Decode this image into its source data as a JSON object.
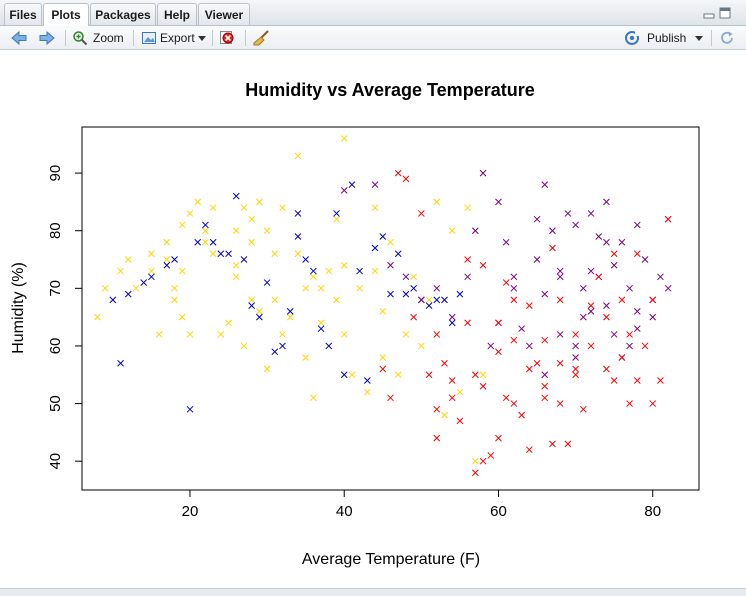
{
  "tabs": [
    {
      "label": "Files",
      "active": false
    },
    {
      "label": "Plots",
      "active": true
    },
    {
      "label": "Packages",
      "active": false
    },
    {
      "label": "Help",
      "active": false
    },
    {
      "label": "Viewer",
      "active": false
    }
  ],
  "toolbar": {
    "back_icon": "arrow-left-icon",
    "forward_icon": "arrow-right-icon",
    "zoom_label": "Zoom",
    "export_label": "Export",
    "remove_icon": "remove-plot-icon",
    "clear_icon": "broom-icon",
    "publish_label": "Publish",
    "refresh_icon": "refresh-icon"
  },
  "colors": {
    "accent_blue": "#3a78c3",
    "cold": "#ffd700",
    "cool": "#0000cd",
    "warm": "#800080",
    "hot": "#ff0000"
  },
  "chart_data": {
    "type": "scatter",
    "title": "Humidity vs Average Temperature",
    "xlabel": "Average Temperature (F)",
    "ylabel": "Humidity (%)",
    "xlim": [
      6,
      86
    ],
    "ylim": [
      35,
      98
    ],
    "xticks": [
      20,
      40,
      60,
      80
    ],
    "yticks": [
      40,
      50,
      60,
      70,
      80,
      90
    ],
    "marker": "x",
    "grid": false,
    "legend": "none",
    "series": [
      {
        "color": "#ffd700",
        "x": [
          8,
          9,
          11,
          12,
          13,
          14,
          15,
          15,
          16,
          17,
          17,
          18,
          18,
          19,
          19,
          19,
          20,
          20,
          21,
          22,
          22,
          23,
          23,
          24,
          25,
          26,
          26,
          26,
          27,
          27,
          28,
          28,
          28,
          29,
          29,
          30,
          30,
          31,
          31,
          32,
          32,
          33,
          34,
          34,
          34,
          35,
          35,
          36,
          36,
          37,
          37,
          38,
          38,
          39,
          39,
          40,
          40,
          40,
          41,
          42,
          43,
          44,
          44,
          45,
          45,
          46,
          47,
          48,
          49,
          50,
          51,
          52,
          53,
          54,
          55,
          56,
          57,
          58
        ],
        "y": [
          65,
          70,
          73,
          75,
          70,
          71,
          73,
          76,
          62,
          78,
          75,
          70,
          68,
          73,
          81,
          65,
          83,
          62,
          85,
          80,
          78,
          84,
          76,
          62,
          64,
          80,
          74,
          72,
          84,
          60,
          82,
          78,
          68,
          85,
          66,
          80,
          56,
          76,
          68,
          84,
          62,
          65,
          83,
          76,
          93,
          70,
          58,
          72,
          51,
          70,
          64,
          73,
          60,
          82,
          68,
          96,
          74,
          62,
          55,
          70,
          52,
          73,
          84,
          66,
          58,
          78,
          55,
          62,
          72,
          60,
          68,
          85,
          48,
          80,
          52,
          84,
          40,
          55
        ]
      },
      {
        "color": "#0000cd",
        "x": [
          10,
          11,
          12,
          14,
          15,
          17,
          18,
          20,
          21,
          22,
          23,
          24,
          25,
          26,
          27,
          28,
          29,
          30,
          31,
          32,
          33,
          34,
          34,
          35,
          36,
          37,
          38,
          39,
          40,
          41,
          42,
          43,
          44,
          45,
          46,
          47,
          48,
          49,
          50,
          51,
          52,
          53,
          54,
          55
        ],
        "y": [
          68,
          57,
          69,
          71,
          72,
          74,
          75,
          49,
          78,
          81,
          78,
          76,
          76,
          86,
          75,
          67,
          65,
          71,
          59,
          60,
          66,
          83,
          79,
          75,
          73,
          63,
          60,
          83,
          55,
          88,
          73,
          54,
          77,
          79,
          69,
          76,
          69,
          70,
          68,
          67,
          68,
          68,
          64,
          69
        ]
      },
      {
        "color": "#800080",
        "x": [
          40,
          44,
          46,
          48,
          50,
          52,
          54,
          56,
          57,
          58,
          59,
          60,
          60,
          61,
          62,
          62,
          63,
          64,
          65,
          65,
          66,
          66,
          67,
          68,
          68,
          69,
          70,
          70,
          71,
          71,
          72,
          72,
          73,
          73,
          74,
          74,
          75,
          75,
          76,
          77,
          77,
          78,
          78,
          79,
          80,
          81,
          82,
          82,
          70,
          72,
          74,
          76,
          78,
          80,
          66,
          68
        ],
        "y": [
          87,
          88,
          74,
          72,
          68,
          70,
          65,
          72,
          80,
          90,
          60,
          85,
          64,
          78,
          70,
          72,
          63,
          60,
          82,
          75,
          88,
          69,
          80,
          72,
          62,
          83,
          81,
          58,
          65,
          70,
          83,
          73,
          79,
          72,
          85,
          67,
          74,
          62,
          78,
          70,
          60,
          81,
          66,
          75,
          68,
          72,
          82,
          70,
          60,
          66,
          78,
          58,
          63,
          65,
          55,
          73
        ]
      },
      {
        "color": "#ff0000",
        "x": [
          45,
          46,
          47,
          48,
          49,
          50,
          51,
          52,
          52,
          53,
          54,
          55,
          56,
          57,
          57,
          58,
          58,
          59,
          60,
          60,
          61,
          61,
          62,
          62,
          63,
          64,
          64,
          65,
          66,
          66,
          67,
          67,
          68,
          68,
          69,
          70,
          70,
          71,
          72,
          72,
          73,
          74,
          74,
          75,
          75,
          76,
          76,
          77,
          77,
          78,
          78,
          79,
          80,
          80,
          81,
          82,
          52,
          54,
          56,
          58,
          60,
          62,
          64,
          66,
          68,
          70
        ],
        "y": [
          56,
          51,
          90,
          89,
          65,
          83,
          55,
          44,
          62,
          57,
          51,
          47,
          64,
          38,
          55,
          40,
          74,
          41,
          59,
          44,
          71,
          51,
          61,
          50,
          48,
          67,
          42,
          57,
          53,
          61,
          77,
          43,
          50,
          57,
          43,
          62,
          55,
          49,
          67,
          60,
          72,
          56,
          65,
          54,
          76,
          58,
          68,
          50,
          62,
          76,
          54,
          60,
          50,
          68,
          54,
          82,
          49,
          54,
          75,
          53,
          64,
          68,
          56,
          51,
          68,
          56
        ]
      }
    ]
  }
}
